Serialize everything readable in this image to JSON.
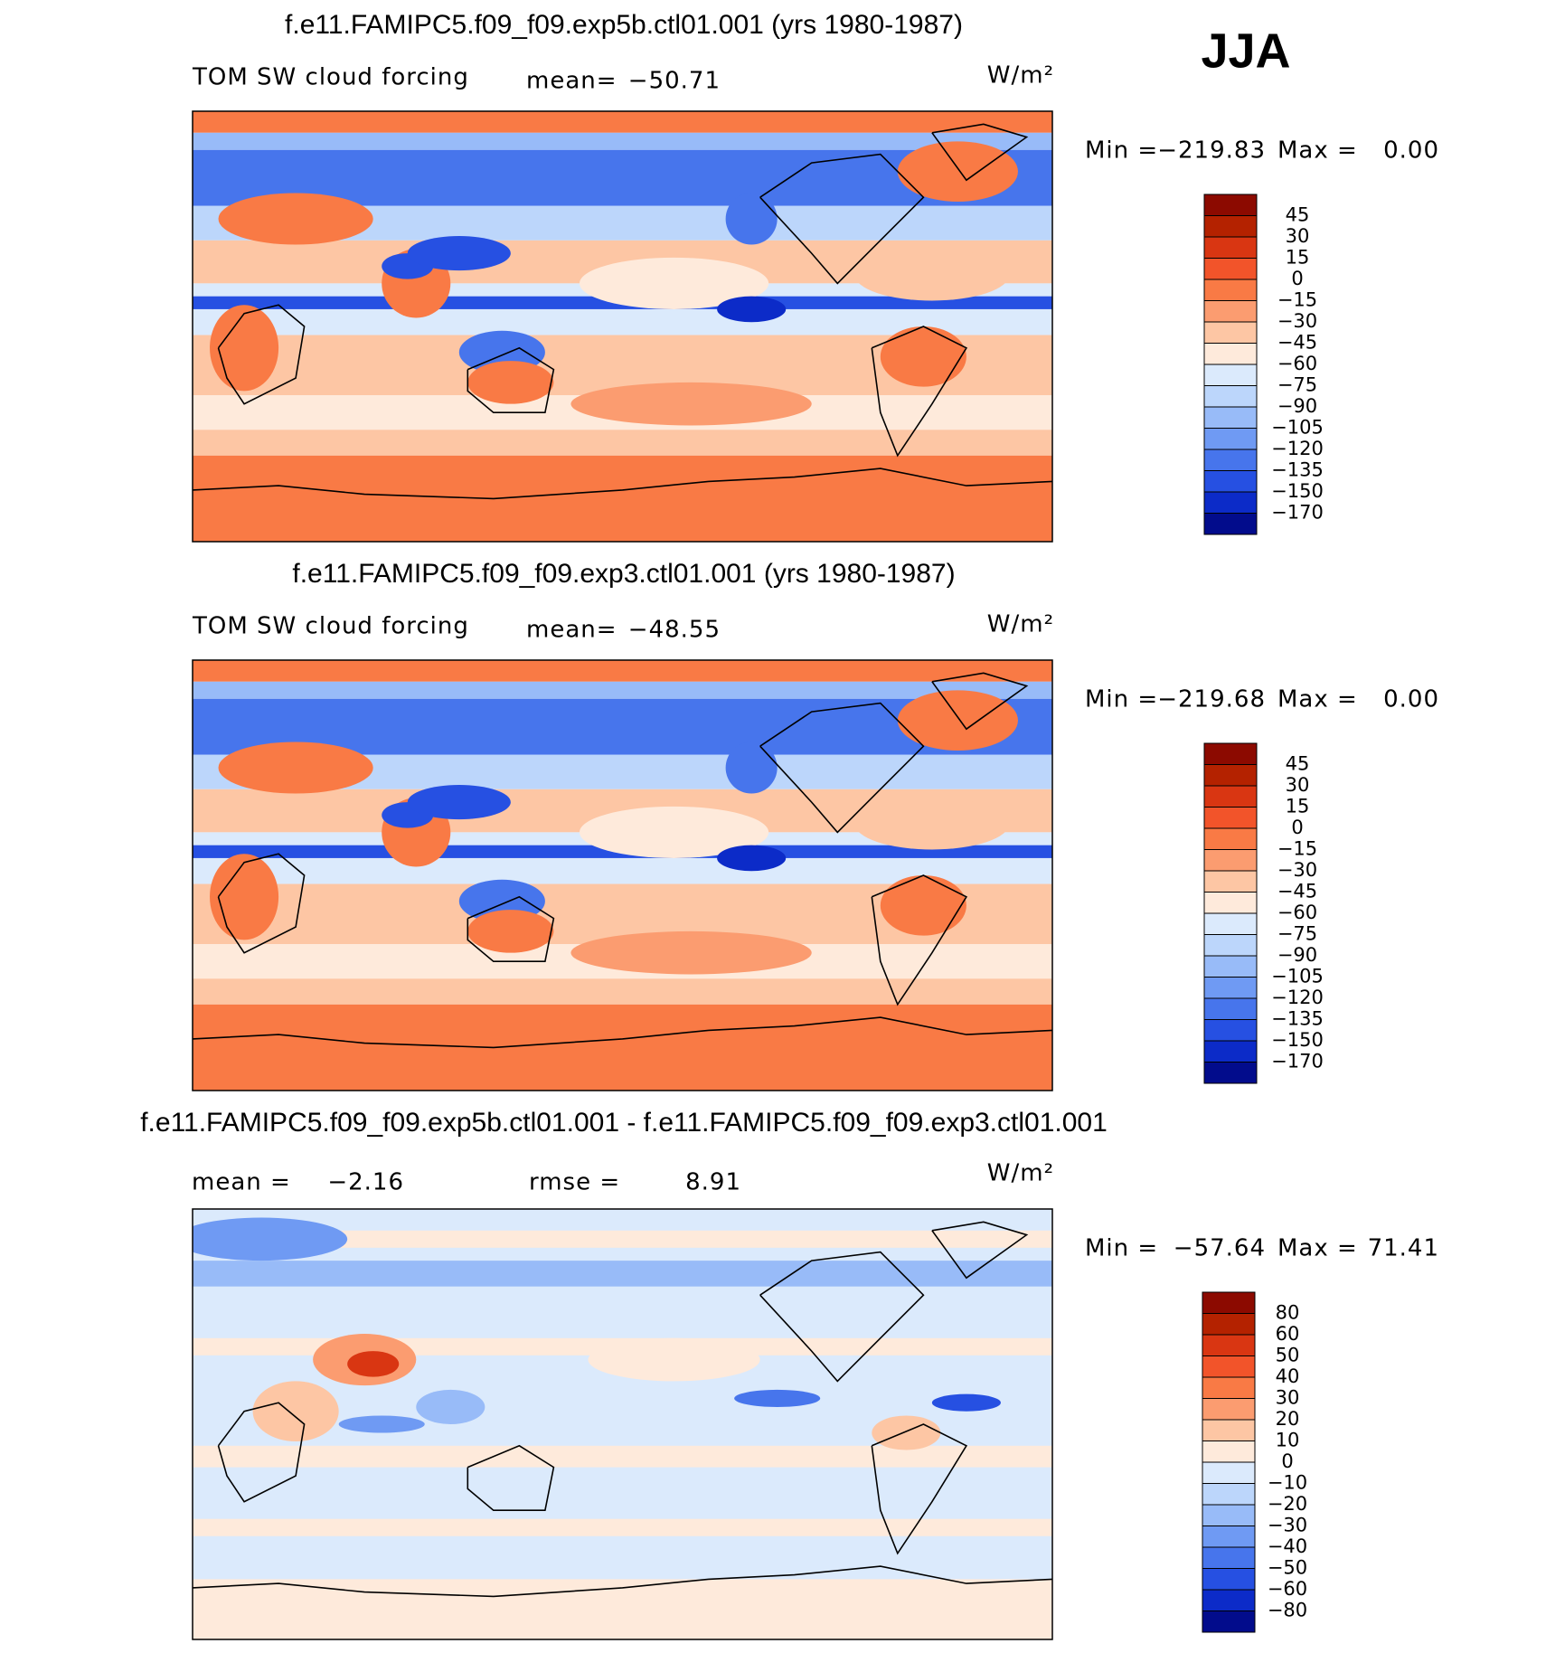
{
  "header": {
    "season": "JJA"
  },
  "panels": [
    {
      "title": "f.e11.FAMIPC5.f09_f09.exp5b.ctl01.001 (yrs 1980-1987)",
      "field": "TOM SW cloud forcing",
      "stats": [
        {
          "label": "mean=",
          "value": "−50.71"
        }
      ],
      "units": "W/m²",
      "min_label": "Min =",
      "min": "−219.83",
      "max_label": "Max =",
      "max": "0.00",
      "colorbar": {
        "labels": [
          "45",
          "30",
          "15",
          "0",
          "−15",
          "−30",
          "−45",
          "−60",
          "−75",
          "−90",
          "−105",
          "−120",
          "−135",
          "−150",
          "−170"
        ],
        "colors": [
          "#8c0a00",
          "#b42200",
          "#d93612",
          "#f2542a",
          "#f97a45",
          "#fb9c70",
          "#fdc6a4",
          "#feeadb",
          "#dbeafc",
          "#bcd6fb",
          "#98bbf8",
          "#6f9af3",
          "#4775ec",
          "#2650e2",
          "#0c2bc8",
          "#020c8c"
        ]
      }
    },
    {
      "title": "f.e11.FAMIPC5.f09_f09.exp3.ctl01.001 (yrs 1980-1987)",
      "field": "TOM SW cloud forcing",
      "stats": [
        {
          "label": "mean=",
          "value": "−48.55"
        }
      ],
      "units": "W/m²",
      "min_label": "Min =",
      "min": "−219.68",
      "max_label": "Max =",
      "max": "0.00",
      "colorbar": {
        "labels": [
          "45",
          "30",
          "15",
          "0",
          "−15",
          "−30",
          "−45",
          "−60",
          "−75",
          "−90",
          "−105",
          "−120",
          "−135",
          "−150",
          "−170"
        ],
        "colors": [
          "#8c0a00",
          "#b42200",
          "#d93612",
          "#f2542a",
          "#f97a45",
          "#fb9c70",
          "#fdc6a4",
          "#feeadb",
          "#dbeafc",
          "#bcd6fb",
          "#98bbf8",
          "#6f9af3",
          "#4775ec",
          "#2650e2",
          "#0c2bc8",
          "#020c8c"
        ]
      }
    },
    {
      "title": "f.e11.FAMIPC5.f09_f09.exp5b.ctl01.001 - f.e11.FAMIPC5.f09_f09.exp3.ctl01.001",
      "stats": [
        {
          "label": "mean =",
          "value": "−2.16"
        },
        {
          "label": "rmse =",
          "value": "8.91"
        }
      ],
      "units": "W/m²",
      "min_label": "Min =",
      "min": "−57.64",
      "max_label": "Max =",
      "max": "71.41",
      "colorbar": {
        "labels": [
          "80",
          "60",
          "50",
          "40",
          "30",
          "20",
          "10",
          "0",
          "−10",
          "−20",
          "−30",
          "−40",
          "−50",
          "−60",
          "−80"
        ],
        "colors": [
          "#8c0a00",
          "#b42200",
          "#d93612",
          "#f2542a",
          "#f97a45",
          "#fb9c70",
          "#fdc6a4",
          "#feeadb",
          "#dbeafc",
          "#bcd6fb",
          "#98bbf8",
          "#6f9af3",
          "#4775ec",
          "#2650e2",
          "#0c2bc8",
          "#020c8c"
        ]
      }
    }
  ]
}
